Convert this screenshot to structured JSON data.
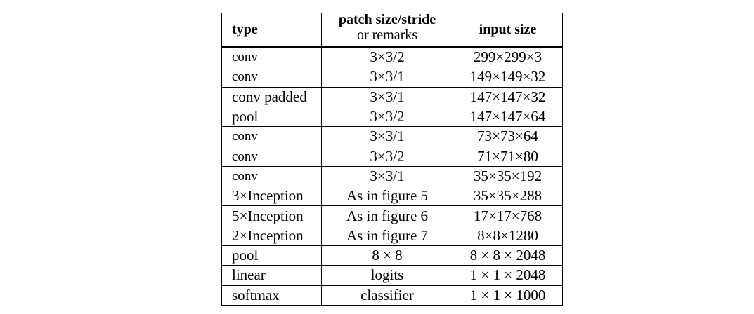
{
  "table": {
    "headers": {
      "type": "type",
      "patch_line1": "patch size/stride",
      "patch_line2": "or remarks",
      "input": "input size"
    },
    "rows": [
      {
        "type": "conv",
        "patch": "3×3/2",
        "input": "299×299×3"
      },
      {
        "type": "conv",
        "patch": "3×3/1",
        "input": "149×149×32"
      },
      {
        "type": "conv padded",
        "patch": "3×3/1",
        "input": "147×147×32"
      },
      {
        "type": "pool",
        "patch": "3×3/2",
        "input": "147×147×64"
      },
      {
        "type": "conv",
        "patch": "3×3/1",
        "input": "73×73×64"
      },
      {
        "type": "conv",
        "patch": "3×3/2",
        "input": "71×71×80"
      },
      {
        "type": "conv",
        "patch": "3×3/1",
        "input": "35×35×192"
      },
      {
        "type": "3×Inception",
        "patch": "As in figure 5",
        "input": "35×35×288"
      },
      {
        "type": "5×Inception",
        "patch": "As in figure 6",
        "input": "17×17×768"
      },
      {
        "type": "2×Inception",
        "patch": "As in figure 7",
        "input": "8×8×1280"
      },
      {
        "type": "pool",
        "patch": "8 × 8",
        "input": "8 × 8 × 2048"
      },
      {
        "type": "linear",
        "patch": "logits",
        "input": "1 × 1 × 2048"
      },
      {
        "type": "softmax",
        "patch": "classifier",
        "input": "1 × 1 × 1000"
      }
    ]
  }
}
